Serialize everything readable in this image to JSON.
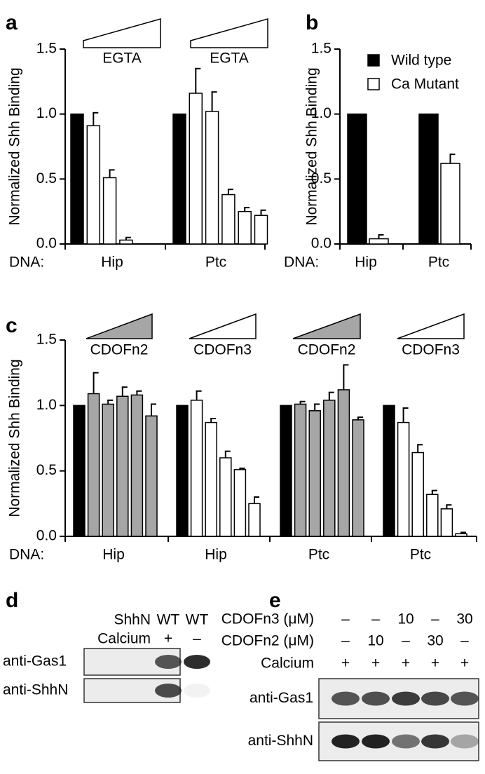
{
  "chart_data": [
    {
      "type": "bar",
      "panel_label": "a",
      "y_label": "Normalized Shh Binding",
      "x_prefix": "DNA:",
      "ylim": [
        0,
        1.5
      ],
      "yticks": [
        {
          "value": 0,
          "label": "0.0"
        },
        {
          "value": 0.5,
          "label": "0.5"
        },
        {
          "value": 1,
          "label": "1.0"
        },
        {
          "value": 1.5,
          "label": "1.5"
        }
      ],
      "groups": [
        {
          "label": "Hip",
          "annotation": "EGTA",
          "annotation_color": "#ffffff",
          "colors": [
            "#000000",
            "#ffffff",
            "#ffffff",
            "#ffffff"
          ],
          "values": [
            1.0,
            0.91,
            0.51,
            0.03
          ],
          "errors": [
            null,
            0.1,
            0.06,
            0.02
          ]
        },
        {
          "label": "Ptc",
          "annotation": "EGTA",
          "annotation_color": "#ffffff",
          "colors": [
            "#000000",
            "#ffffff",
            "#ffffff",
            "#ffffff",
            "#ffffff",
            "#ffffff"
          ],
          "values": [
            1.0,
            1.16,
            1.02,
            0.38,
            0.25,
            0.22
          ],
          "errors": [
            null,
            0.19,
            0.15,
            0.04,
            0.03,
            0.04
          ]
        }
      ]
    },
    {
      "type": "bar",
      "panel_label": "b",
      "y_label": "Normalized Shh Binding",
      "x_prefix": "DNA:",
      "ylim": [
        0,
        1.5
      ],
      "yticks": [
        {
          "value": 0,
          "label": "0.0"
        },
        {
          "value": 0.5,
          "label": "0.5"
        },
        {
          "value": 1,
          "label": "1.0"
        },
        {
          "value": 1.5,
          "label": "1.5"
        }
      ],
      "categories": [
        "Hip",
        "Ptc"
      ],
      "legend": "upper right",
      "series": [
        {
          "name": "Wild type",
          "color": "#000000",
          "values": [
            1.0,
            1.0
          ],
          "errors": [
            null,
            null
          ]
        },
        {
          "name": "Ca Mutant",
          "color": "#ffffff",
          "values": [
            0.04,
            0.62
          ],
          "errors": [
            0.03,
            0.07
          ]
        }
      ]
    },
    {
      "type": "bar",
      "panel_label": "c",
      "y_label": "Normalized Shh Binding",
      "x_prefix": "DNA:",
      "ylim": [
        0,
        1.5
      ],
      "yticks": [
        {
          "value": 0,
          "label": "0.0"
        },
        {
          "value": 0.5,
          "label": "0.5"
        },
        {
          "value": 1,
          "label": "1.0"
        },
        {
          "value": 1.5,
          "label": "1.5"
        }
      ],
      "groups": [
        {
          "label": "Hip",
          "annotation": "CDOFn2",
          "annotation_color": "#a6a6a6",
          "colors": [
            "#000000",
            "#a6a6a6",
            "#a6a6a6",
            "#a6a6a6",
            "#a6a6a6",
            "#a6a6a6"
          ],
          "values": [
            1.0,
            1.09,
            1.01,
            1.07,
            1.08,
            0.92
          ],
          "errors": [
            null,
            0.16,
            0.03,
            0.07,
            0.03,
            0.09
          ]
        },
        {
          "label": "Hip",
          "annotation": "CDOFn3",
          "annotation_color": "#ffffff",
          "colors": [
            "#000000",
            "#ffffff",
            "#ffffff",
            "#ffffff",
            "#ffffff",
            "#ffffff"
          ],
          "values": [
            1.0,
            1.04,
            0.87,
            0.6,
            0.51,
            0.25
          ],
          "errors": [
            null,
            0.07,
            0.03,
            0.05,
            0.01,
            0.05
          ]
        },
        {
          "label": "Ptc",
          "annotation": "CDOFn2",
          "annotation_color": "#a6a6a6",
          "colors": [
            "#000000",
            "#a6a6a6",
            "#a6a6a6",
            "#a6a6a6",
            "#a6a6a6",
            "#a6a6a6"
          ],
          "values": [
            1.0,
            1.01,
            0.96,
            1.04,
            1.12,
            0.89
          ],
          "errors": [
            null,
            0.02,
            0.05,
            0.06,
            0.19,
            0.02
          ]
        },
        {
          "label": "Ptc",
          "annotation": "CDOFn3",
          "annotation_color": "#ffffff",
          "colors": [
            "#000000",
            "#ffffff",
            "#ffffff",
            "#ffffff",
            "#ffffff",
            "#ffffff"
          ],
          "values": [
            1.0,
            0.87,
            0.64,
            0.32,
            0.21,
            0.02
          ],
          "errors": [
            null,
            0.11,
            0.06,
            0.03,
            0.03,
            0.01
          ]
        }
      ]
    }
  ],
  "blots": [
    {
      "panel_label": "d",
      "header_rows": [
        {
          "label": "ShhN",
          "cells": [
            "WT",
            "WT"
          ]
        },
        {
          "label": "Calcium",
          "cells": [
            "+",
            "–"
          ]
        }
      ],
      "blot_rows": [
        "anti-Gas1",
        "anti-ShhN"
      ]
    },
    {
      "panel_label": "e",
      "header_rows": [
        {
          "label": "CDOFn3 (μM)",
          "cells": [
            "–",
            "–",
            "10",
            "–",
            "30"
          ]
        },
        {
          "label": "CDOFn2 (μM)",
          "cells": [
            "–",
            "10",
            "–",
            "30",
            "–"
          ]
        },
        {
          "label": "Calcium",
          "cells": [
            "+",
            "+",
            "+",
            "+",
            "+"
          ]
        }
      ],
      "blot_rows": [
        "anti-Gas1",
        "anti-ShhN"
      ]
    }
  ]
}
